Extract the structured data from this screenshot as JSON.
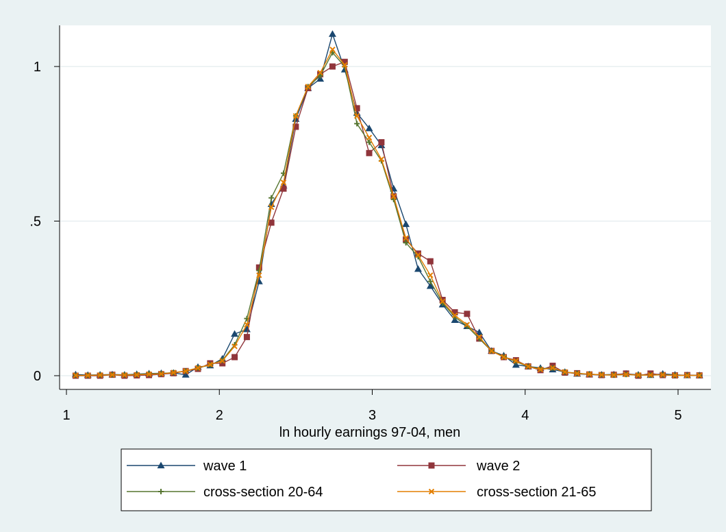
{
  "chart_data": {
    "type": "line",
    "xlabel": "ln hourly earnings 97-04, men",
    "ylabel": "",
    "xlim": [
      1.0,
      5.2
    ],
    "ylim": [
      0,
      1.1
    ],
    "x_ticks": [
      1,
      2,
      3,
      4,
      5
    ],
    "x_tick_labels": [
      "1",
      "2",
      "3",
      "4",
      "5"
    ],
    "y_ticks": [
      0,
      0.5,
      1
    ],
    "y_tick_labels": [
      "0",
      ".5",
      "1"
    ],
    "grid": "horizontal",
    "legend_position": "bottom",
    "x": [
      1.06,
      1.14,
      1.22,
      1.3,
      1.38,
      1.46,
      1.54,
      1.62,
      1.7,
      1.78,
      1.86,
      1.94,
      2.02,
      2.1,
      2.18,
      2.26,
      2.34,
      2.42,
      2.5,
      2.58,
      2.66,
      2.74,
      2.82,
      2.9,
      2.98,
      3.06,
      3.14,
      3.22,
      3.3,
      3.38,
      3.46,
      3.54,
      3.62,
      3.7,
      3.78,
      3.86,
      3.94,
      4.02,
      4.1,
      4.18,
      4.26,
      4.34,
      4.42,
      4.5,
      4.58,
      4.66,
      4.74,
      4.82,
      4.9,
      4.98,
      5.06,
      5.14
    ],
    "series": [
      {
        "name": "wave 1",
        "color": "#1a476f",
        "marker": "triangle",
        "values": [
          0.004,
          0.002,
          0.003,
          0.004,
          0.003,
          0.005,
          0.007,
          0.008,
          0.009,
          0.003,
          0.028,
          0.033,
          0.055,
          0.135,
          0.15,
          0.305,
          0.555,
          0.615,
          0.83,
          0.93,
          0.96,
          1.105,
          0.99,
          0.85,
          0.8,
          0.745,
          0.605,
          0.49,
          0.345,
          0.29,
          0.23,
          0.18,
          0.16,
          0.14,
          0.08,
          0.065,
          0.035,
          0.03,
          0.025,
          0.02,
          0.012,
          0.006,
          0.004,
          0.003,
          0.004,
          0.006,
          0.003,
          0.002,
          0.006,
          0.003,
          0.001,
          0.001
        ]
      },
      {
        "name": "wave 2",
        "color": "#90353b",
        "marker": "square",
        "values": [
          0.0,
          0.0,
          0.0,
          0.003,
          0.0,
          0.001,
          0.002,
          0.005,
          0.008,
          0.015,
          0.022,
          0.04,
          0.04,
          0.06,
          0.125,
          0.35,
          0.495,
          0.605,
          0.805,
          0.93,
          0.975,
          1.0,
          1.015,
          0.865,
          0.72,
          0.755,
          0.58,
          0.44,
          0.395,
          0.37,
          0.245,
          0.205,
          0.2,
          0.12,
          0.08,
          0.06,
          0.05,
          0.03,
          0.018,
          0.032,
          0.01,
          0.008,
          0.004,
          0.002,
          0.003,
          0.007,
          0.0,
          0.007,
          0.002,
          0.001,
          0.002,
          0.001
        ]
      },
      {
        "name": "cross-section 20-64",
        "color": "#55752f",
        "marker": "plus",
        "values": [
          0.001,
          0.001,
          0.002,
          0.003,
          0.003,
          0.004,
          0.006,
          0.007,
          0.01,
          0.015,
          0.025,
          0.035,
          0.05,
          0.1,
          0.185,
          0.34,
          0.575,
          0.655,
          0.84,
          0.935,
          0.97,
          1.045,
          1.0,
          0.815,
          0.755,
          0.695,
          0.57,
          0.43,
          0.385,
          0.305,
          0.235,
          0.19,
          0.16,
          0.12,
          0.08,
          0.062,
          0.045,
          0.03,
          0.022,
          0.025,
          0.012,
          0.008,
          0.005,
          0.003,
          0.002,
          0.004,
          0.002,
          0.002,
          0.003,
          0.001,
          0.001,
          0.001
        ]
      },
      {
        "name": "cross-section 21-65",
        "color": "#e37e00",
        "marker": "x",
        "values": [
          0.001,
          0.001,
          0.002,
          0.003,
          0.002,
          0.003,
          0.005,
          0.006,
          0.01,
          0.015,
          0.025,
          0.036,
          0.048,
          0.095,
          0.165,
          0.325,
          0.545,
          0.625,
          0.84,
          0.935,
          0.98,
          1.055,
          1.005,
          0.84,
          0.77,
          0.7,
          0.58,
          0.445,
          0.39,
          0.325,
          0.24,
          0.195,
          0.165,
          0.125,
          0.08,
          0.06,
          0.048,
          0.03,
          0.02,
          0.025,
          0.012,
          0.007,
          0.005,
          0.003,
          0.002,
          0.004,
          0.002,
          0.002,
          0.003,
          0.001,
          0.001,
          0.001
        ]
      }
    ]
  },
  "colors": {
    "background": "#eaf2f3",
    "plot_background": "#ffffff",
    "gridline": "#e9f1f2",
    "axis": "#000000"
  }
}
